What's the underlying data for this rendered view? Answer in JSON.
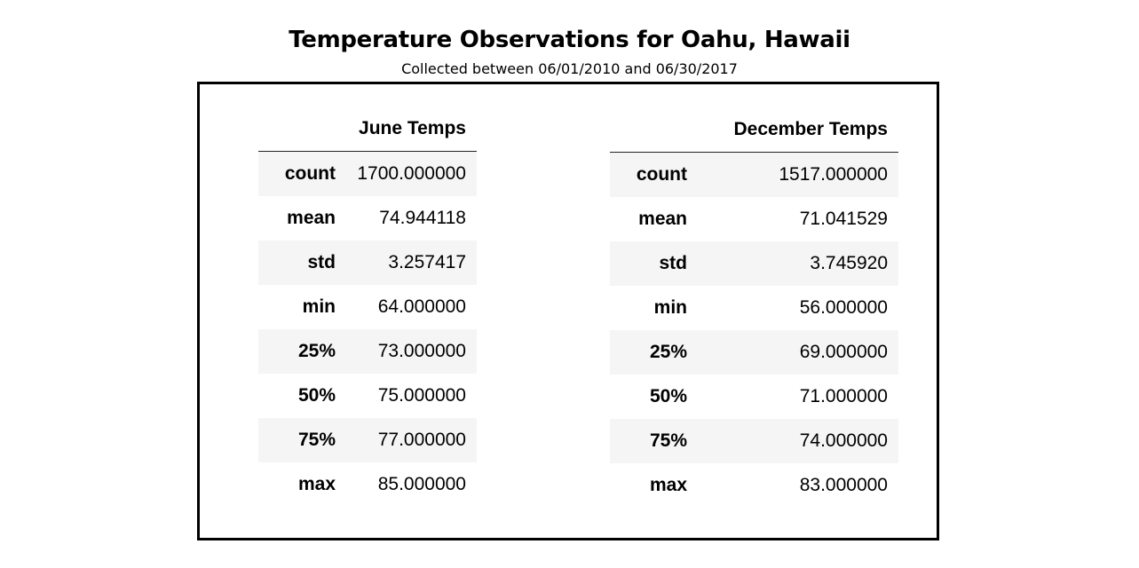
{
  "title": "Temperature Observations for Oahu, Hawaii",
  "subtitle": "Collected  between  06/01/2010 and 06/30/2017",
  "tables": [
    {
      "header": "June Temps",
      "rows": [
        {
          "stat": "count",
          "value": "1700.000000"
        },
        {
          "stat": "mean",
          "value": "74.944118"
        },
        {
          "stat": "std",
          "value": "3.257417"
        },
        {
          "stat": "min",
          "value": "64.000000"
        },
        {
          "stat": "25%",
          "value": "73.000000"
        },
        {
          "stat": "50%",
          "value": "75.000000"
        },
        {
          "stat": "75%",
          "value": "77.000000"
        },
        {
          "stat": "max",
          "value": "85.000000"
        }
      ]
    },
    {
      "header": "December Temps",
      "rows": [
        {
          "stat": "count",
          "value": "1517.000000"
        },
        {
          "stat": "mean",
          "value": "71.041529"
        },
        {
          "stat": "std",
          "value": "3.745920"
        },
        {
          "stat": "min",
          "value": "56.000000"
        },
        {
          "stat": "25%",
          "value": "69.000000"
        },
        {
          "stat": "50%",
          "value": "71.000000"
        },
        {
          "stat": "75%",
          "value": "74.000000"
        },
        {
          "stat": "max",
          "value": "83.000000"
        }
      ]
    }
  ],
  "colors": {
    "stripe": "#f5f5f5",
    "border": "#000000"
  }
}
